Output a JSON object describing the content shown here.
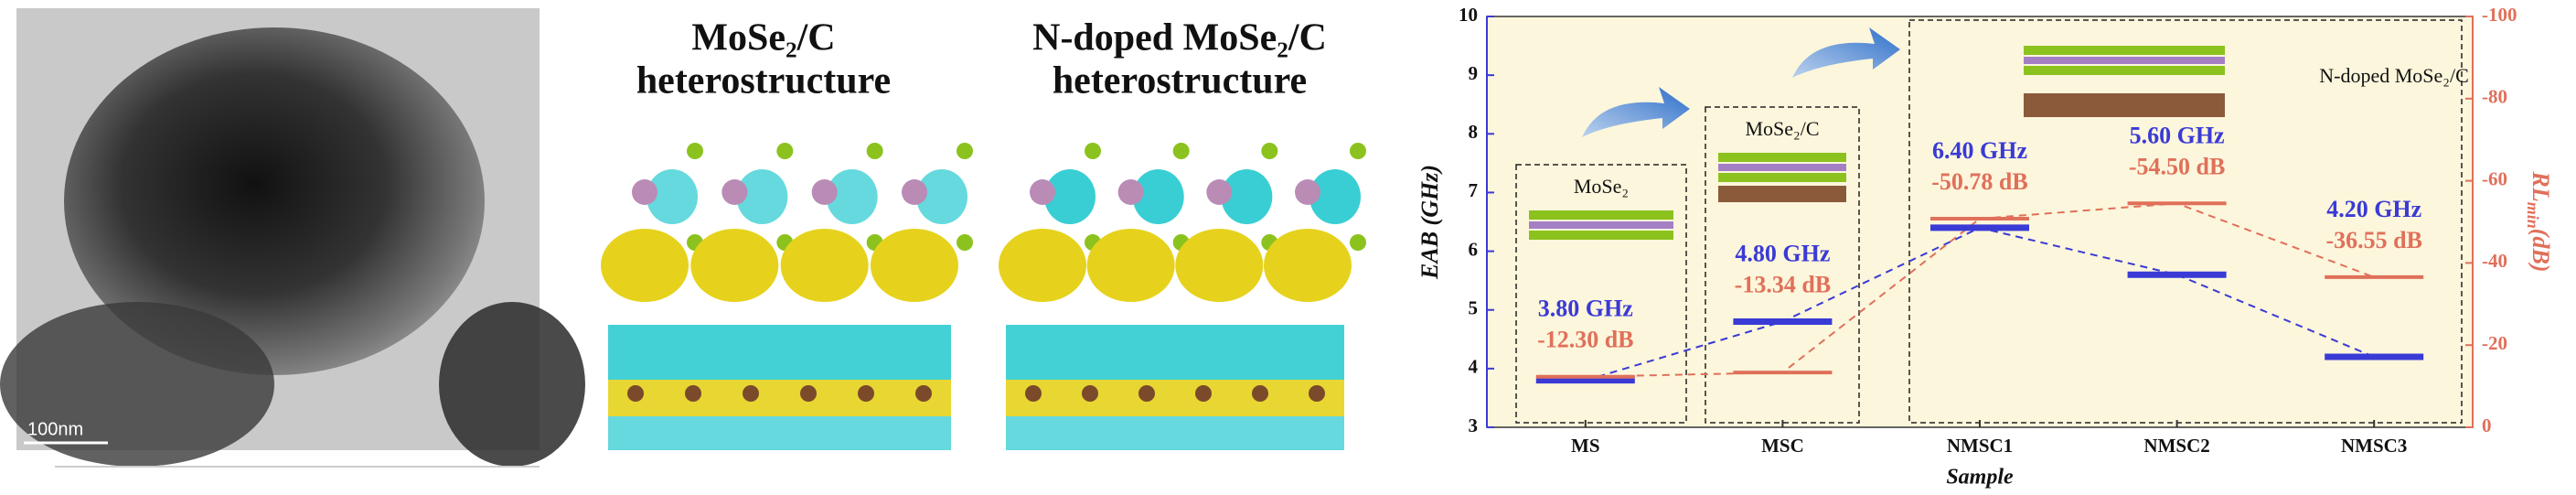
{
  "tem_image": {
    "scale_bar": "100nm"
  },
  "panels": [
    {
      "title": "MoSe₂/C",
      "subtitle": "heterostructure"
    },
    {
      "title": "N-doped MoSe₂/C",
      "subtitle": "heterostructure"
    }
  ],
  "chart_data": {
    "type": "marker",
    "x_label": "Sample",
    "y_label": "EAB (GHz)",
    "y2_label": {
      "main": "RL",
      "sub": "min",
      "unit": "(dB)"
    },
    "categories": [
      "MS",
      "MSC",
      "NMSC1",
      "NMSC2",
      "NMSC3"
    ],
    "series": [
      {
        "name": "EAB",
        "color": "#3a3ad6",
        "values": [
          3.8,
          4.8,
          6.4,
          5.6,
          4.2
        ],
        "value_labels": [
          "3.80 GHz",
          "4.80 GHz",
          "6.40 GHz",
          "5.60 GHz",
          "4.20 GHz"
        ]
      },
      {
        "name": "RLmin",
        "color": "#e0705a",
        "axis": "y2",
        "values": [
          -12.3,
          -13.34,
          -50.78,
          -54.5,
          -36.55
        ],
        "value_labels": [
          "-12.30 dB",
          "-13.34 dB",
          "-50.78 dB",
          "-54.50 dB",
          "-36.55 dB"
        ]
      }
    ],
    "ylim": [
      3,
      10
    ],
    "yticks": [
      3,
      4,
      5,
      6,
      7,
      8,
      9,
      10
    ],
    "y2lim": [
      0,
      -100
    ],
    "y2ticks": [
      0,
      -20,
      -40,
      -60,
      -80,
      -100
    ],
    "insets": [
      "MoSe₂",
      "MoSe₂/C",
      "N-doped MoSe₂/C"
    ]
  }
}
